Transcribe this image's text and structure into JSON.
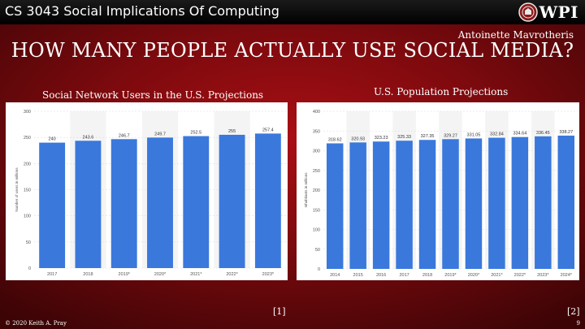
{
  "header": {
    "course": "CS 3043 Social Implications Of Computing",
    "logo_text": "WPI"
  },
  "slide": {
    "author": "Antoinette Mavrotheris",
    "title": "HOW MANY PEOPLE ACTUALLY USE SOCIAL MEDIA?",
    "ref1": "[1]",
    "ref2": "[2]"
  },
  "footer": {
    "copyright": "© 2020 Keith A. Pray",
    "page_number": "9"
  },
  "colors": {
    "bar": "#3a78dc",
    "band": "#f4f4f4",
    "grid": "#dddddd",
    "axis_text": "#555555"
  },
  "chart_data": [
    {
      "type": "bar",
      "title": "Social Network Users in the U.S. Projections",
      "ylabel": "Number of users in millions",
      "categories": [
        "2017",
        "2018",
        "2019*",
        "2020*",
        "2021*",
        "2022*",
        "2023*"
      ],
      "values": [
        240,
        243.6,
        246.7,
        249.7,
        252.5,
        255,
        257.4
      ],
      "value_labels": [
        "240",
        "243.6",
        "246.7",
        "249.7",
        "252.5",
        "255",
        "257.4"
      ],
      "ylim": [
        0,
        300
      ],
      "yticks": [
        0,
        50,
        100,
        150,
        200,
        250,
        300
      ],
      "grid": true
    },
    {
      "type": "bar",
      "title": "U.S. Population Projections",
      "ylabel": "Inhabitants in millions",
      "categories": [
        "2014",
        "2015",
        "2016",
        "2017",
        "2018",
        "2019*",
        "2020*",
        "2021*",
        "2022*",
        "2023*",
        "2024*"
      ],
      "values": [
        318.62,
        320.93,
        323.23,
        325.33,
        327.35,
        329.27,
        331.05,
        332.84,
        334.64,
        336.45,
        338.27
      ],
      "value_labels": [
        "318.62",
        "320.93",
        "323.23",
        "325.33",
        "327.35",
        "329.27",
        "331.05",
        "332.84",
        "334.64",
        "336.45",
        "338.27"
      ],
      "ylim": [
        0,
        400
      ],
      "yticks": [
        0,
        50,
        100,
        150,
        200,
        250,
        300,
        350,
        400
      ],
      "grid": true
    }
  ]
}
